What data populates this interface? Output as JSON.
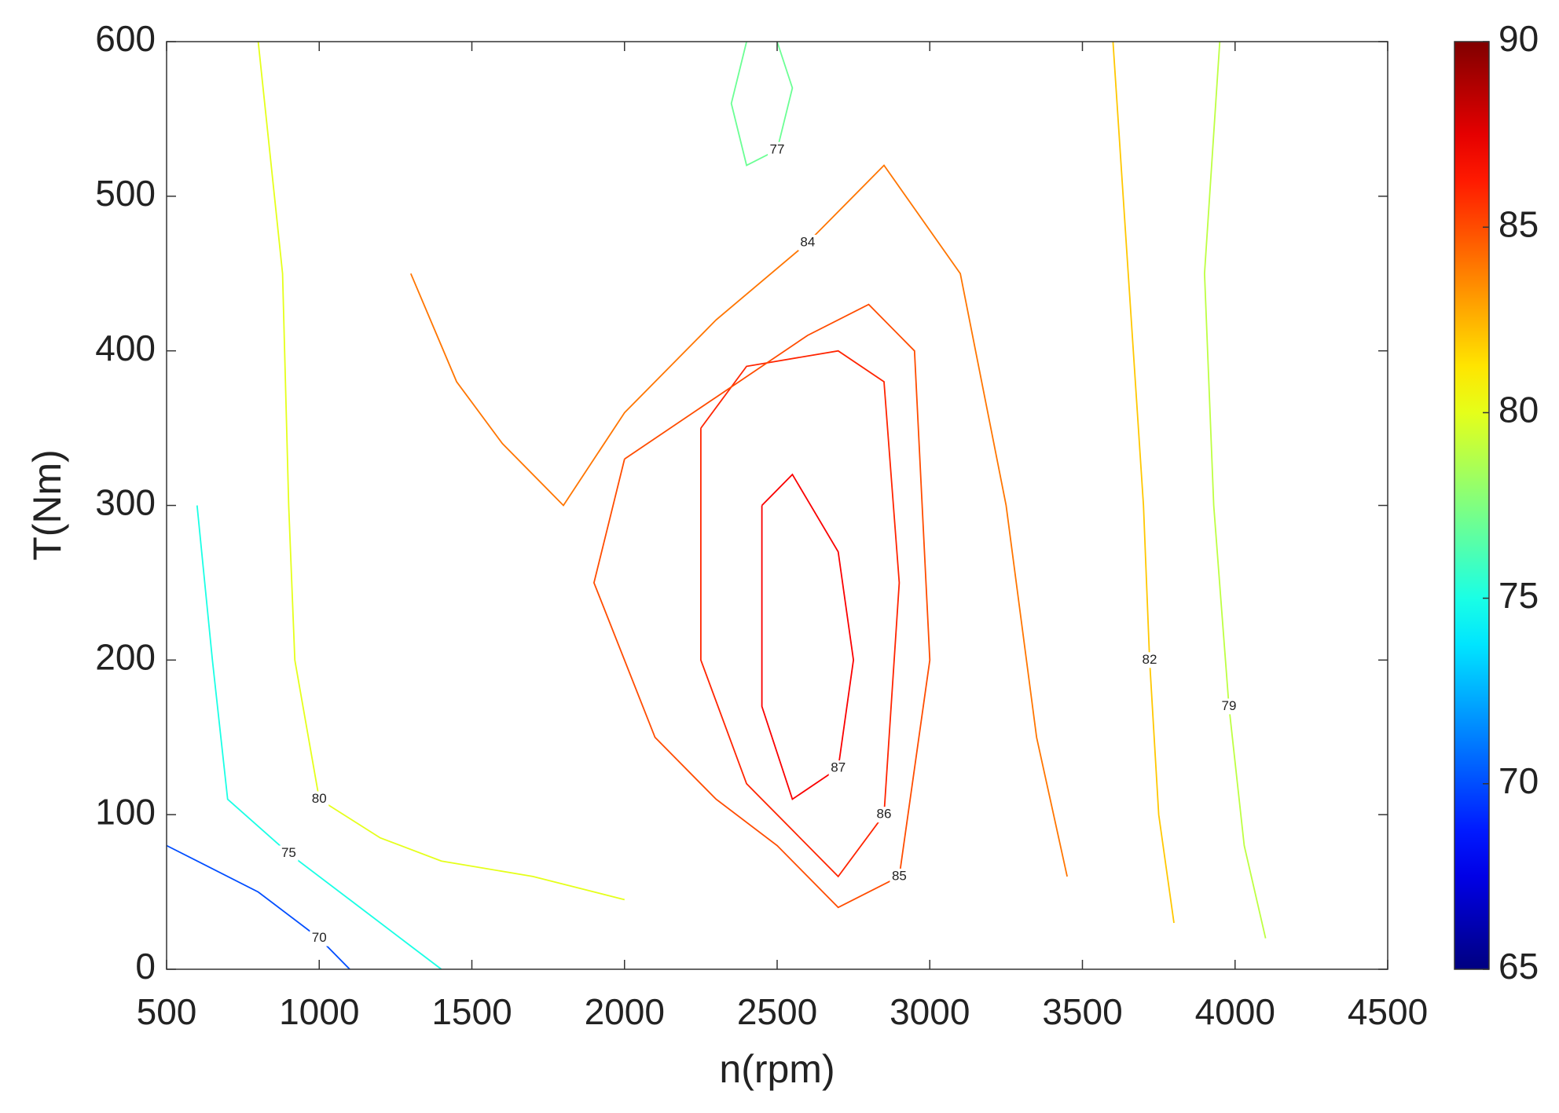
{
  "chart_data": {
    "type": "contour",
    "xlabel": "n(rpm)",
    "ylabel": "T(Nm)",
    "xlim": [
      500,
      4500
    ],
    "ylim": [
      0,
      600
    ],
    "xticks": [
      500,
      1000,
      1500,
      2000,
      2500,
      3000,
      3500,
      4000,
      4500
    ],
    "yticks": [
      0,
      100,
      200,
      300,
      400,
      500,
      600
    ],
    "colormap": "jet",
    "clim": [
      65,
      90
    ],
    "cticks": [
      65,
      70,
      75,
      80,
      85,
      90
    ],
    "contours": [
      {
        "level": 86,
        "x": [
          2250,
          2400,
          2700,
          2850,
          2900,
          2850,
          2700,
          2550,
          2400,
          2250,
          2250
        ],
        "y": [
          350,
          390,
          400,
          380,
          250,
          100,
          60,
          90,
          120,
          200,
          350
        ]
      },
      {
        "level": 85,
        "x": [
          2000,
          2300,
          2600,
          2800,
          2950,
          3000,
          2900,
          2700,
          2500,
          2300,
          2100,
          1900,
          2000
        ],
        "y": [
          330,
          370,
          410,
          430,
          400,
          200,
          60,
          40,
          80,
          110,
          150,
          250,
          330
        ]
      },
      {
        "level": 84,
        "x": [
          1300,
          1450,
          1600,
          1800,
          2000,
          2300,
          2600,
          2850,
          3100,
          3250,
          3350,
          3450
        ],
        "y": [
          450,
          380,
          340,
          300,
          360,
          420,
          470,
          520,
          450,
          300,
          150,
          60
        ]
      },
      {
        "level": 87,
        "x": [
          2450,
          2550,
          2700,
          2750,
          2700,
          2550,
          2450,
          2450
        ],
        "y": [
          300,
          320,
          270,
          200,
          130,
          110,
          170,
          300
        ]
      },
      {
        "level": 82,
        "x": [
          3600,
          3650,
          3700,
          3720,
          3750,
          3800
        ],
        "y": [
          600,
          450,
          300,
          200,
          100,
          30
        ]
      },
      {
        "level": 80,
        "x": [
          800,
          880,
          900,
          920,
          1000,
          1200,
          1400,
          1700,
          2000
        ],
        "y": [
          600,
          450,
          300,
          200,
          110,
          85,
          70,
          60,
          45
        ]
      },
      {
        "level": 79,
        "x": [
          3950,
          3900,
          3930,
          3980,
          4030,
          4100
        ],
        "y": [
          600,
          450,
          300,
          170,
          80,
          20
        ]
      },
      {
        "level": 77,
        "x": [
          2400,
          2350,
          2400,
          2500,
          2550,
          2500
        ],
        "y": [
          600,
          560,
          520,
          530,
          570,
          600
        ]
      },
      {
        "level": 75,
        "x": [
          600,
          650,
          700,
          900,
          1100,
          1300,
          1400
        ],
        "y": [
          300,
          200,
          110,
          75,
          45,
          15,
          0
        ]
      },
      {
        "level": 70,
        "x": [
          500,
          800,
          1000,
          1100
        ],
        "y": [
          80,
          50,
          20,
          0
        ]
      }
    ]
  }
}
